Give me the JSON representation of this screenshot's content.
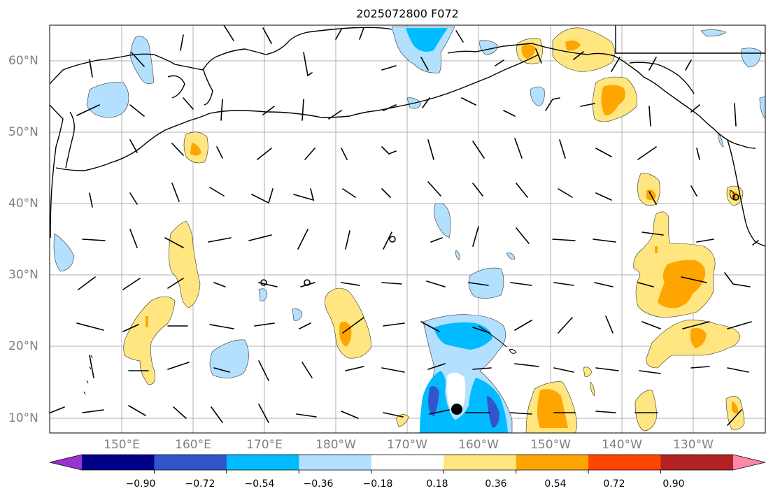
{
  "title": "2025072800 F072",
  "lat_labels": [
    "60°N",
    "50°N",
    "40°N",
    "30°N",
    "20°N",
    "10°N"
  ],
  "lon_labels": [
    "150°E",
    "160°E",
    "170°E",
    "180°W",
    "170°W",
    "160°W",
    "150°W",
    "140°W",
    "130°W"
  ],
  "colorbar": {
    "colors": [
      "#9933cc",
      "#000088",
      "#3355cc",
      "#00bbff",
      "#b3e0ff",
      "#ffffff",
      "#ffe680",
      "#ffa500",
      "#ff4500",
      "#b22222",
      "#ff88aa"
    ],
    "labels": [
      "−0.90",
      "−0.72",
      "−0.54",
      "−0.36",
      "−0.18",
      "0.18",
      "0.36",
      "0.54",
      "0.72",
      "0.90"
    ]
  }
}
